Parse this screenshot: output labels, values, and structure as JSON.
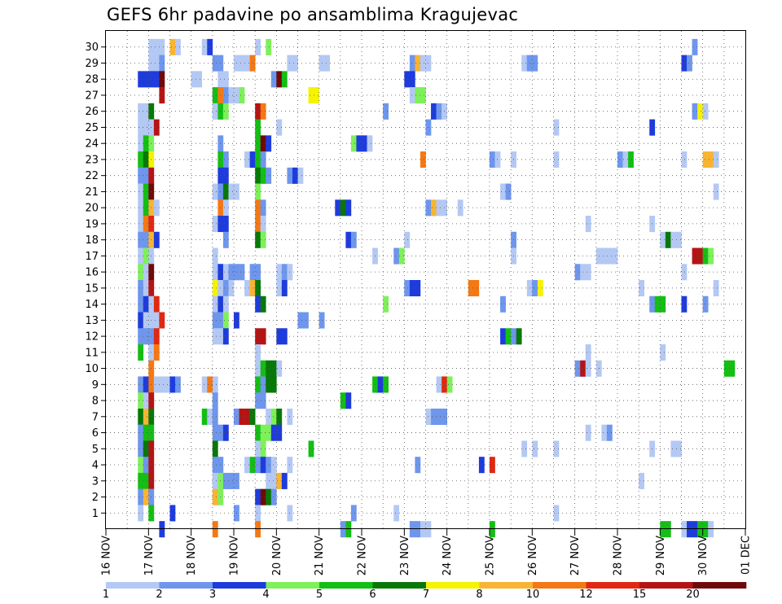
{
  "chart_data": {
    "type": "heatmap",
    "title": "GEFS 6hr padavine po ansamblima Kragujevac",
    "y_ticks": [
      "1",
      "2",
      "3",
      "4",
      "5",
      "6",
      "7",
      "8",
      "9",
      "10",
      "11",
      "12",
      "13",
      "14",
      "15",
      "16",
      "17",
      "18",
      "19",
      "20",
      "21",
      "22",
      "23",
      "24",
      "25",
      "26",
      "27",
      "28",
      "29",
      "30"
    ],
    "x_ticks": [
      "16 NOV",
      "17 NOV",
      "18 NOV",
      "19 NOV",
      "20 NOV",
      "21 NOV",
      "22 NOV",
      "23 NOV",
      "24 NOV",
      "25 NOV",
      "26 NOV",
      "27 NOV",
      "28 NOV",
      "29 NOV",
      "30 NOV",
      "01 DEC"
    ],
    "grid": true,
    "legend": {
      "position": "bottom",
      "labels": [
        "1",
        "2",
        "3",
        "4",
        "5",
        "6",
        "7",
        "8",
        "10",
        "12",
        "15",
        "20"
      ],
      "colors": [
        "#b4c8f4",
        "#6e96ec",
        "#1e3cdc",
        "#7ef05a",
        "#14be14",
        "#087808",
        "#f4f400",
        "#f8b432",
        "#f47814",
        "#e02812",
        "#b41414",
        "#6e0a0a"
      ]
    },
    "runs_description": "members 1-30 plus row 0 (control); each run = [member, start_step, [levels...]] with 6-hour steps from 16 NOV 00UTC; level index 1-12 maps to legend colors",
    "runs": [
      [
        30,
        8,
        [
          1,
          1,
          1
        ]
      ],
      [
        30,
        12,
        [
          8,
          1
        ]
      ],
      [
        30,
        18,
        [
          1,
          3
        ]
      ],
      [
        30,
        28,
        [
          1
        ]
      ],
      [
        30,
        30,
        [
          4
        ]
      ],
      [
        30,
        110,
        [
          2
        ]
      ],
      [
        29,
        8,
        [
          1,
          1,
          2
        ]
      ],
      [
        29,
        20,
        [
          2,
          2
        ]
      ],
      [
        29,
        24,
        [
          1,
          1,
          1,
          9
        ]
      ],
      [
        29,
        34,
        [
          1,
          1
        ]
      ],
      [
        29,
        40,
        [
          1,
          1
        ]
      ],
      [
        29,
        57,
        [
          2,
          8,
          1,
          1
        ]
      ],
      [
        29,
        78,
        [
          1,
          2,
          2
        ]
      ],
      [
        29,
        108,
        [
          3,
          2
        ]
      ],
      [
        28,
        6,
        [
          3,
          3,
          3,
          3,
          12
        ]
      ],
      [
        28,
        16,
        [
          1,
          1
        ]
      ],
      [
        28,
        21,
        [
          1,
          1
        ]
      ],
      [
        28,
        31,
        [
          2,
          12,
          5
        ]
      ],
      [
        28,
        56,
        [
          3,
          3
        ]
      ],
      [
        27,
        10,
        [
          11
        ]
      ],
      [
        27,
        20,
        [
          5,
          9,
          2,
          1,
          1,
          4
        ]
      ],
      [
        27,
        38,
        [
          7,
          7
        ]
      ],
      [
        27,
        57,
        [
          1,
          4,
          4
        ]
      ],
      [
        26,
        6,
        [
          1,
          1,
          6
        ]
      ],
      [
        26,
        20,
        [
          1,
          5,
          4
        ]
      ],
      [
        26,
        28,
        [
          11,
          9
        ]
      ],
      [
        26,
        52,
        [
          2
        ]
      ],
      [
        26,
        61,
        [
          3,
          2,
          1
        ]
      ],
      [
        26,
        110,
        [
          2,
          7,
          1
        ]
      ],
      [
        25,
        6,
        [
          1,
          1,
          1,
          11
        ]
      ],
      [
        25,
        28,
        [
          5
        ]
      ],
      [
        25,
        32,
        [
          1
        ]
      ],
      [
        25,
        60,
        [
          2
        ]
      ],
      [
        25,
        84,
        [
          1
        ]
      ],
      [
        25,
        102,
        [
          3
        ]
      ],
      [
        24,
        6,
        [
          1,
          5,
          4
        ]
      ],
      [
        24,
        21,
        [
          2
        ]
      ],
      [
        24,
        28,
        [
          5,
          12,
          3
        ]
      ],
      [
        24,
        46,
        [
          4,
          3,
          3,
          1
        ]
      ],
      [
        23,
        6,
        [
          5,
          6,
          7
        ]
      ],
      [
        23,
        21,
        [
          5,
          2
        ]
      ],
      [
        23,
        26,
        [
          1,
          3,
          5,
          2
        ]
      ],
      [
        23,
        59,
        [
          9
        ]
      ],
      [
        23,
        72,
        [
          2,
          1
        ]
      ],
      [
        23,
        76,
        [
          1
        ]
      ],
      [
        23,
        84,
        [
          1
        ]
      ],
      [
        23,
        96,
        [
          2,
          1,
          5
        ]
      ],
      [
        23,
        108,
        [
          1
        ]
      ],
      [
        23,
        112,
        [
          8,
          8,
          1
        ]
      ],
      [
        22,
        6,
        [
          2,
          2,
          11
        ]
      ],
      [
        22,
        21,
        [
          3,
          3
        ]
      ],
      [
        22,
        28,
        [
          6,
          5,
          2
        ]
      ],
      [
        22,
        34,
        [
          2,
          3,
          1
        ]
      ],
      [
        21,
        6,
        [
          1,
          5,
          12
        ]
      ],
      [
        21,
        20,
        [
          1,
          2,
          6,
          1,
          1
        ]
      ],
      [
        21,
        28,
        [
          4
        ]
      ],
      [
        21,
        74,
        [
          1,
          2
        ]
      ],
      [
        21,
        114,
        [
          1
        ]
      ],
      [
        20,
        6,
        [
          1,
          5,
          8,
          1
        ]
      ],
      [
        20,
        21,
        [
          9,
          1
        ]
      ],
      [
        20,
        28,
        [
          9,
          2
        ]
      ],
      [
        20,
        43,
        [
          3,
          6,
          3
        ]
      ],
      [
        20,
        60,
        [
          2,
          8,
          1,
          1
        ]
      ],
      [
        20,
        66,
        [
          1
        ]
      ],
      [
        19,
        6,
        [
          1,
          9,
          10
        ]
      ],
      [
        19,
        20,
        [
          1,
          3,
          3
        ]
      ],
      [
        19,
        28,
        [
          9,
          1
        ]
      ],
      [
        19,
        90,
        [
          1
        ]
      ],
      [
        19,
        102,
        [
          1
        ]
      ],
      [
        18,
        6,
        [
          2,
          2,
          8,
          3
        ]
      ],
      [
        18,
        22,
        [
          2
        ]
      ],
      [
        18,
        28,
        [
          6,
          4
        ]
      ],
      [
        18,
        45,
        [
          3,
          2
        ]
      ],
      [
        18,
        56,
        [
          1
        ]
      ],
      [
        18,
        76,
        [
          2
        ]
      ],
      [
        18,
        104,
        [
          1,
          6,
          1,
          1
        ]
      ],
      [
        17,
        6,
        [
          1,
          4,
          1
        ]
      ],
      [
        17,
        20,
        [
          1
        ]
      ],
      [
        17,
        50,
        [
          1
        ]
      ],
      [
        17,
        54,
        [
          2,
          4
        ]
      ],
      [
        17,
        76,
        [
          1
        ]
      ],
      [
        17,
        92,
        [
          1,
          1,
          1,
          1
        ]
      ],
      [
        17,
        110,
        [
          11,
          11,
          5,
          4
        ]
      ],
      [
        16,
        6,
        [
          4,
          1,
          12
        ]
      ],
      [
        16,
        20,
        [
          1,
          3,
          1,
          2,
          2,
          2
        ]
      ],
      [
        16,
        27,
        [
          2,
          2
        ]
      ],
      [
        16,
        32,
        [
          1,
          2,
          1
        ]
      ],
      [
        16,
        88,
        [
          2,
          1,
          1
        ]
      ],
      [
        16,
        108,
        [
          1
        ]
      ],
      [
        15,
        6,
        [
          2,
          1,
          11
        ]
      ],
      [
        15,
        20,
        [
          7,
          1,
          2,
          1
        ]
      ],
      [
        15,
        26,
        [
          1,
          8,
          6
        ]
      ],
      [
        15,
        32,
        [
          1,
          3
        ]
      ],
      [
        15,
        56,
        [
          2,
          3,
          3
        ]
      ],
      [
        15,
        68,
        [
          9,
          9
        ]
      ],
      [
        15,
        79,
        [
          1,
          2,
          7
        ]
      ],
      [
        15,
        100,
        [
          1
        ]
      ],
      [
        15,
        114,
        [
          1
        ]
      ],
      [
        14,
        6,
        [
          2,
          3,
          1,
          10
        ]
      ],
      [
        14,
        20,
        [
          1,
          3,
          1
        ]
      ],
      [
        14,
        28,
        [
          3,
          6
        ]
      ],
      [
        14,
        52,
        [
          4
        ]
      ],
      [
        14,
        74,
        [
          2
        ]
      ],
      [
        14,
        102,
        [
          2,
          5,
          5
        ]
      ],
      [
        14,
        108,
        [
          3
        ]
      ],
      [
        14,
        112,
        [
          2
        ]
      ],
      [
        13,
        6,
        [
          3,
          1
        ]
      ],
      [
        13,
        8,
        [
          1,
          1,
          10
        ]
      ],
      [
        13,
        20,
        [
          2,
          2,
          4
        ]
      ],
      [
        13,
        24,
        [
          3
        ]
      ],
      [
        13,
        36,
        [
          2,
          2
        ]
      ],
      [
        13,
        40,
        [
          2
        ]
      ],
      [
        12,
        6,
        [
          2,
          2,
          2,
          10
        ]
      ],
      [
        12,
        20,
        [
          1,
          1,
          3
        ]
      ],
      [
        12,
        28,
        [
          11,
          11
        ]
      ],
      [
        12,
        32,
        [
          3,
          3
        ]
      ],
      [
        12,
        74,
        [
          3,
          5,
          2,
          6
        ]
      ],
      [
        11,
        6,
        [
          5
        ]
      ],
      [
        11,
        8,
        [
          1,
          9
        ]
      ],
      [
        11,
        28,
        [
          1
        ]
      ],
      [
        11,
        90,
        [
          1
        ]
      ],
      [
        11,
        104,
        [
          1
        ]
      ],
      [
        10,
        8,
        [
          9
        ]
      ],
      [
        10,
        28,
        [
          1,
          5,
          6,
          6,
          1
        ]
      ],
      [
        10,
        88,
        [
          2,
          11,
          1
        ]
      ],
      [
        10,
        92,
        [
          1
        ]
      ],
      [
        10,
        116,
        [
          5,
          5
        ]
      ],
      [
        9,
        6,
        [
          2,
          3,
          9,
          1,
          1,
          1,
          3,
          2
        ]
      ],
      [
        9,
        18,
        [
          1,
          9,
          1
        ]
      ],
      [
        9,
        28,
        [
          5,
          2,
          6,
          6
        ]
      ],
      [
        9,
        50,
        [
          5,
          3,
          5
        ]
      ],
      [
        9,
        62,
        [
          1,
          10,
          4
        ]
      ],
      [
        8,
        6,
        [
          4,
          1,
          11
        ]
      ],
      [
        8,
        20,
        [
          2
        ]
      ],
      [
        8,
        28,
        [
          2,
          2
        ]
      ],
      [
        8,
        44,
        [
          5,
          3
        ]
      ],
      [
        7,
        6,
        [
          6,
          8,
          6
        ]
      ],
      [
        7,
        18,
        [
          5,
          1,
          2
        ]
      ],
      [
        7,
        24,
        [
          2,
          11,
          11,
          6
        ]
      ],
      [
        7,
        30,
        [
          1,
          4,
          6
        ]
      ],
      [
        7,
        34,
        [
          1
        ]
      ],
      [
        7,
        60,
        [
          1,
          2,
          2,
          2
        ]
      ],
      [
        6,
        6,
        [
          2,
          5,
          5
        ]
      ],
      [
        6,
        20,
        [
          2,
          2,
          3
        ]
      ],
      [
        6,
        28,
        [
          5,
          4,
          4,
          3,
          3
        ]
      ],
      [
        6,
        90,
        [
          1
        ]
      ],
      [
        6,
        93,
        [
          1,
          2
        ]
      ],
      [
        5,
        6,
        [
          2,
          6,
          11
        ]
      ],
      [
        5,
        20,
        [
          6
        ]
      ],
      [
        5,
        28,
        [
          1,
          4
        ]
      ],
      [
        5,
        38,
        [
          5
        ]
      ],
      [
        5,
        78,
        [
          1
        ]
      ],
      [
        5,
        80,
        [
          1
        ]
      ],
      [
        5,
        84,
        [
          1
        ]
      ],
      [
        5,
        102,
        [
          1
        ]
      ],
      [
        5,
        106,
        [
          1,
          1
        ]
      ],
      [
        4,
        6,
        [
          4,
          2,
          11
        ]
      ],
      [
        4,
        20,
        [
          2,
          2
        ]
      ],
      [
        4,
        26,
        [
          1,
          5,
          2,
          3,
          2,
          1
        ]
      ],
      [
        4,
        34,
        [
          1
        ]
      ],
      [
        4,
        58,
        [
          2
        ]
      ],
      [
        4,
        70,
        [
          3
        ]
      ],
      [
        4,
        72,
        [
          10
        ]
      ],
      [
        3,
        6,
        [
          5,
          5,
          11
        ]
      ],
      [
        3,
        20,
        [
          1,
          4,
          2,
          2,
          2
        ]
      ],
      [
        3,
        30,
        [
          1,
          1,
          8,
          3
        ]
      ],
      [
        3,
        100,
        [
          1
        ]
      ],
      [
        2,
        6,
        [
          2,
          8,
          2
        ]
      ],
      [
        2,
        20,
        [
          8,
          4
        ]
      ],
      [
        2,
        28,
        [
          3,
          12,
          6,
          2
        ]
      ],
      [
        1,
        6,
        [
          1
        ]
      ],
      [
        1,
        8,
        [
          5
        ]
      ],
      [
        1,
        12,
        [
          3
        ]
      ],
      [
        1,
        24,
        [
          2
        ]
      ],
      [
        1,
        28,
        [
          1
        ]
      ],
      [
        1,
        34,
        [
          1
        ]
      ],
      [
        1,
        46,
        [
          2
        ]
      ],
      [
        1,
        54,
        [
          1
        ]
      ],
      [
        1,
        84,
        [
          1
        ]
      ],
      [
        0,
        10,
        [
          3
        ]
      ],
      [
        0,
        20,
        [
          9
        ]
      ],
      [
        0,
        28,
        [
          9
        ]
      ],
      [
        0,
        44,
        [
          2,
          5
        ]
      ],
      [
        0,
        57,
        [
          2,
          2,
          1,
          1
        ]
      ],
      [
        0,
        72,
        [
          5
        ]
      ],
      [
        0,
        104,
        [
          5,
          5
        ]
      ],
      [
        0,
        108,
        [
          1,
          3,
          3,
          5,
          5,
          1
        ]
      ]
    ]
  }
}
